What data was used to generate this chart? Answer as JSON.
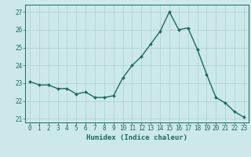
{
  "x": [
    0,
    1,
    2,
    3,
    4,
    5,
    6,
    7,
    8,
    9,
    10,
    11,
    12,
    13,
    14,
    15,
    16,
    17,
    18,
    19,
    20,
    21,
    22,
    23
  ],
  "y": [
    23.1,
    22.9,
    22.9,
    22.7,
    22.7,
    22.4,
    22.5,
    22.2,
    22.2,
    22.3,
    23.3,
    24.0,
    24.5,
    25.2,
    25.9,
    27.0,
    26.0,
    26.1,
    24.9,
    23.5,
    22.2,
    21.9,
    21.4,
    21.1
  ],
  "line_color": "#1a6b5e",
  "marker_color": "#1a6b5e",
  "bg_color": "#cce8ea",
  "grid_color": "#aad0d3",
  "xlabel": "Humidex (Indice chaleur)",
  "ylim": [
    20.8,
    27.4
  ],
  "xlim": [
    -0.5,
    23.5
  ],
  "yticks": [
    21,
    22,
    23,
    24,
    25,
    26,
    27
  ],
  "xticks": [
    0,
    1,
    2,
    3,
    4,
    5,
    6,
    7,
    8,
    9,
    10,
    11,
    12,
    13,
    14,
    15,
    16,
    17,
    18,
    19,
    20,
    21,
    22,
    23
  ],
  "label_fontsize": 6.5,
  "tick_fontsize": 5.5
}
